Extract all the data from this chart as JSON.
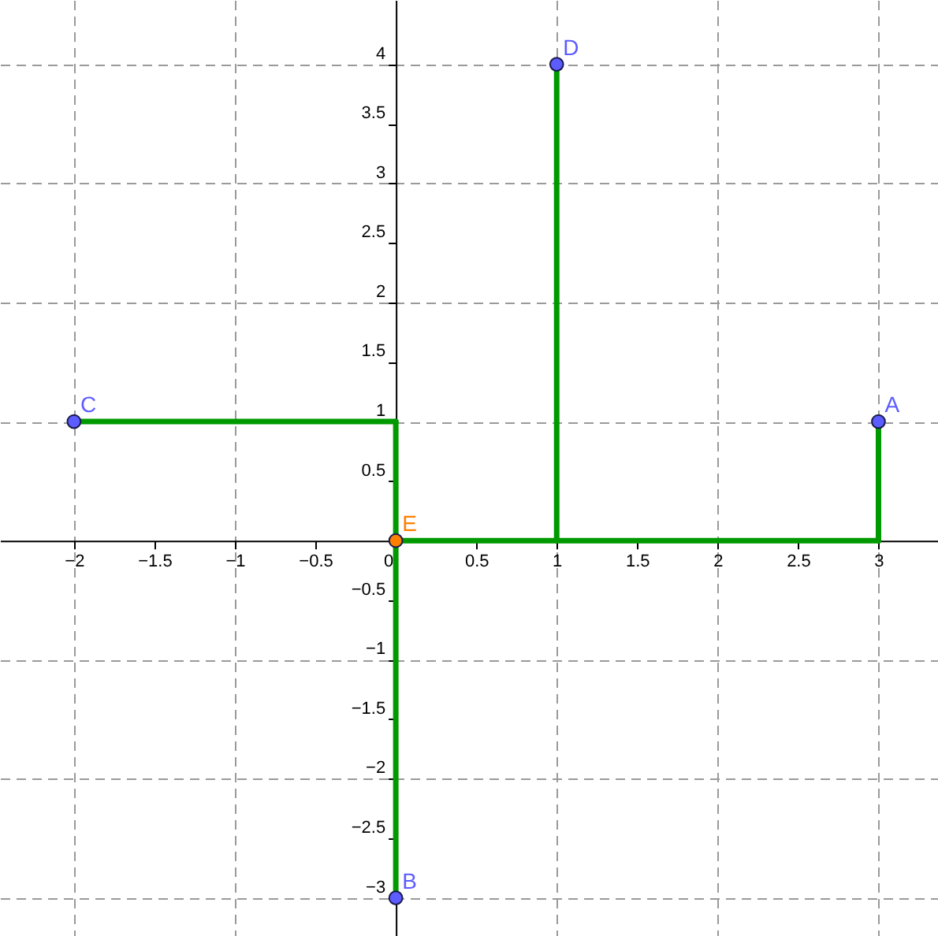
{
  "chart_data": {
    "type": "line",
    "xlim": [
      -2.46,
      3.37
    ],
    "ylim": [
      -3.32,
      4.54
    ],
    "xticks": [
      -2,
      -1.5,
      -1,
      -0.5,
      0,
      0.5,
      1,
      1.5,
      2,
      2.5,
      3
    ],
    "yticks": [
      -3,
      -2.5,
      -2,
      -1.5,
      -1,
      -0.5,
      0.5,
      1,
      1.5,
      2,
      2.5,
      3,
      3.5,
      4
    ],
    "grid": true,
    "line_style": "solid",
    "series": [
      {
        "color": "#009900",
        "x": [
          -2,
          0
        ],
        "values": [
          1,
          1
        ]
      },
      {
        "color": "#009900",
        "x": [
          0,
          0
        ],
        "values": [
          1,
          -3
        ]
      },
      {
        "color": "#009900",
        "x": [
          0,
          3
        ],
        "values": [
          0,
          0
        ]
      },
      {
        "color": "#009900",
        "x": [
          3,
          3
        ],
        "values": [
          0,
          1
        ]
      },
      {
        "color": "#009900",
        "x": [
          1,
          1
        ],
        "values": [
          0,
          4
        ]
      },
      {
        "type": "scatter",
        "marker": "circle",
        "x": [
          3,
          0,
          -2,
          1,
          0
        ],
        "values": [
          1,
          -3,
          1,
          4,
          0
        ],
        "colors": [
          "#5c5cff",
          "#5c5cff",
          "#5c5cff",
          "#5c5cff",
          "#ff7f00"
        ]
      }
    ],
    "annotations": [
      {
        "text": "A",
        "x": 3,
        "y": 1
      },
      {
        "text": "B",
        "x": 0,
        "y": -3
      },
      {
        "text": "C",
        "x": -2,
        "y": 1
      },
      {
        "text": "D",
        "x": 1,
        "y": 4
      },
      {
        "text": "E",
        "x": 0,
        "y": 0
      }
    ]
  }
}
